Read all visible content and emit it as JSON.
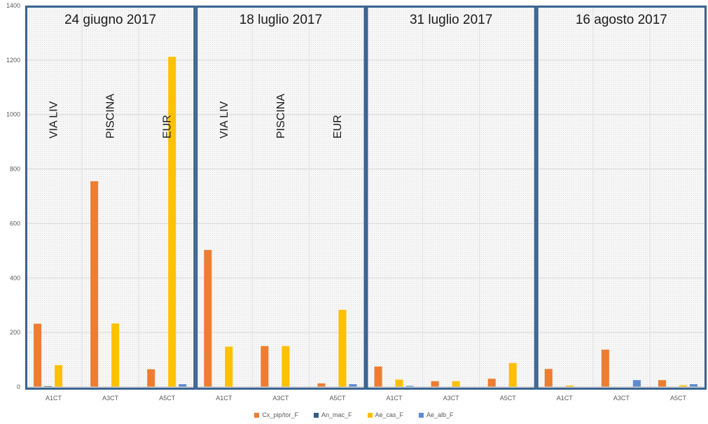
{
  "chart_data": {
    "type": "bar",
    "ylim": [
      0,
      1400
    ],
    "y_ticks": [
      0,
      200,
      400,
      600,
      800,
      1000,
      1200,
      1400
    ],
    "grid": true,
    "legend_position": "bottom",
    "series": [
      {
        "name": "Cx_pip/tor_F",
        "color": "#ED7D31"
      },
      {
        "name": "An_mac_F",
        "color": "#2E5C8A"
      },
      {
        "name": "Ae_cas_F",
        "color": "#FFC000"
      },
      {
        "name": "Ae_alb_F",
        "color": "#5B8BD0"
      }
    ],
    "panels": [
      {
        "title": "24 giugno 2017",
        "site_labels": [
          "VIA LIV",
          "PISCINA",
          "EUR"
        ],
        "categories": [
          "A1CT",
          "A3CT",
          "A5CT"
        ],
        "values": {
          "Cx_pip/tor_F": [
            232,
            755,
            65
          ],
          "An_mac_F": [
            3,
            0,
            0
          ],
          "Ae_cas_F": [
            80,
            233,
            1212
          ],
          "Ae_alb_F": [
            0,
            0,
            10
          ]
        }
      },
      {
        "title": "18 luglio 2017",
        "site_labels": [
          "VIA LIV",
          "PISCINA",
          "EUR"
        ],
        "categories": [
          "A1CT",
          "A3CT",
          "A5CT"
        ],
        "values": {
          "Cx_pip/tor_F": [
            503,
            150,
            13
          ],
          "An_mac_F": [
            0,
            0,
            0
          ],
          "Ae_cas_F": [
            148,
            150,
            283
          ],
          "Ae_alb_F": [
            0,
            0,
            10
          ]
        }
      },
      {
        "title": "31 luglio 2017",
        "site_labels": [],
        "categories": [
          "A1CT",
          "A3CT",
          "A5CT"
        ],
        "values": {
          "Cx_pip/tor_F": [
            75,
            21,
            30
          ],
          "An_mac_F": [
            0,
            0,
            0
          ],
          "Ae_cas_F": [
            27,
            21,
            88
          ],
          "Ae_alb_F": [
            4,
            0,
            0
          ]
        }
      },
      {
        "title": "16 agosto 2017",
        "site_labels": [],
        "categories": [
          "A1CT",
          "A3CT",
          "A5CT"
        ],
        "values": {
          "Cx_pip/tor_F": [
            66,
            137,
            25
          ],
          "An_mac_F": [
            0,
            0,
            0
          ],
          "Ae_cas_F": [
            5,
            0,
            6
          ],
          "Ae_alb_F": [
            0,
            25,
            10
          ]
        }
      }
    ]
  }
}
